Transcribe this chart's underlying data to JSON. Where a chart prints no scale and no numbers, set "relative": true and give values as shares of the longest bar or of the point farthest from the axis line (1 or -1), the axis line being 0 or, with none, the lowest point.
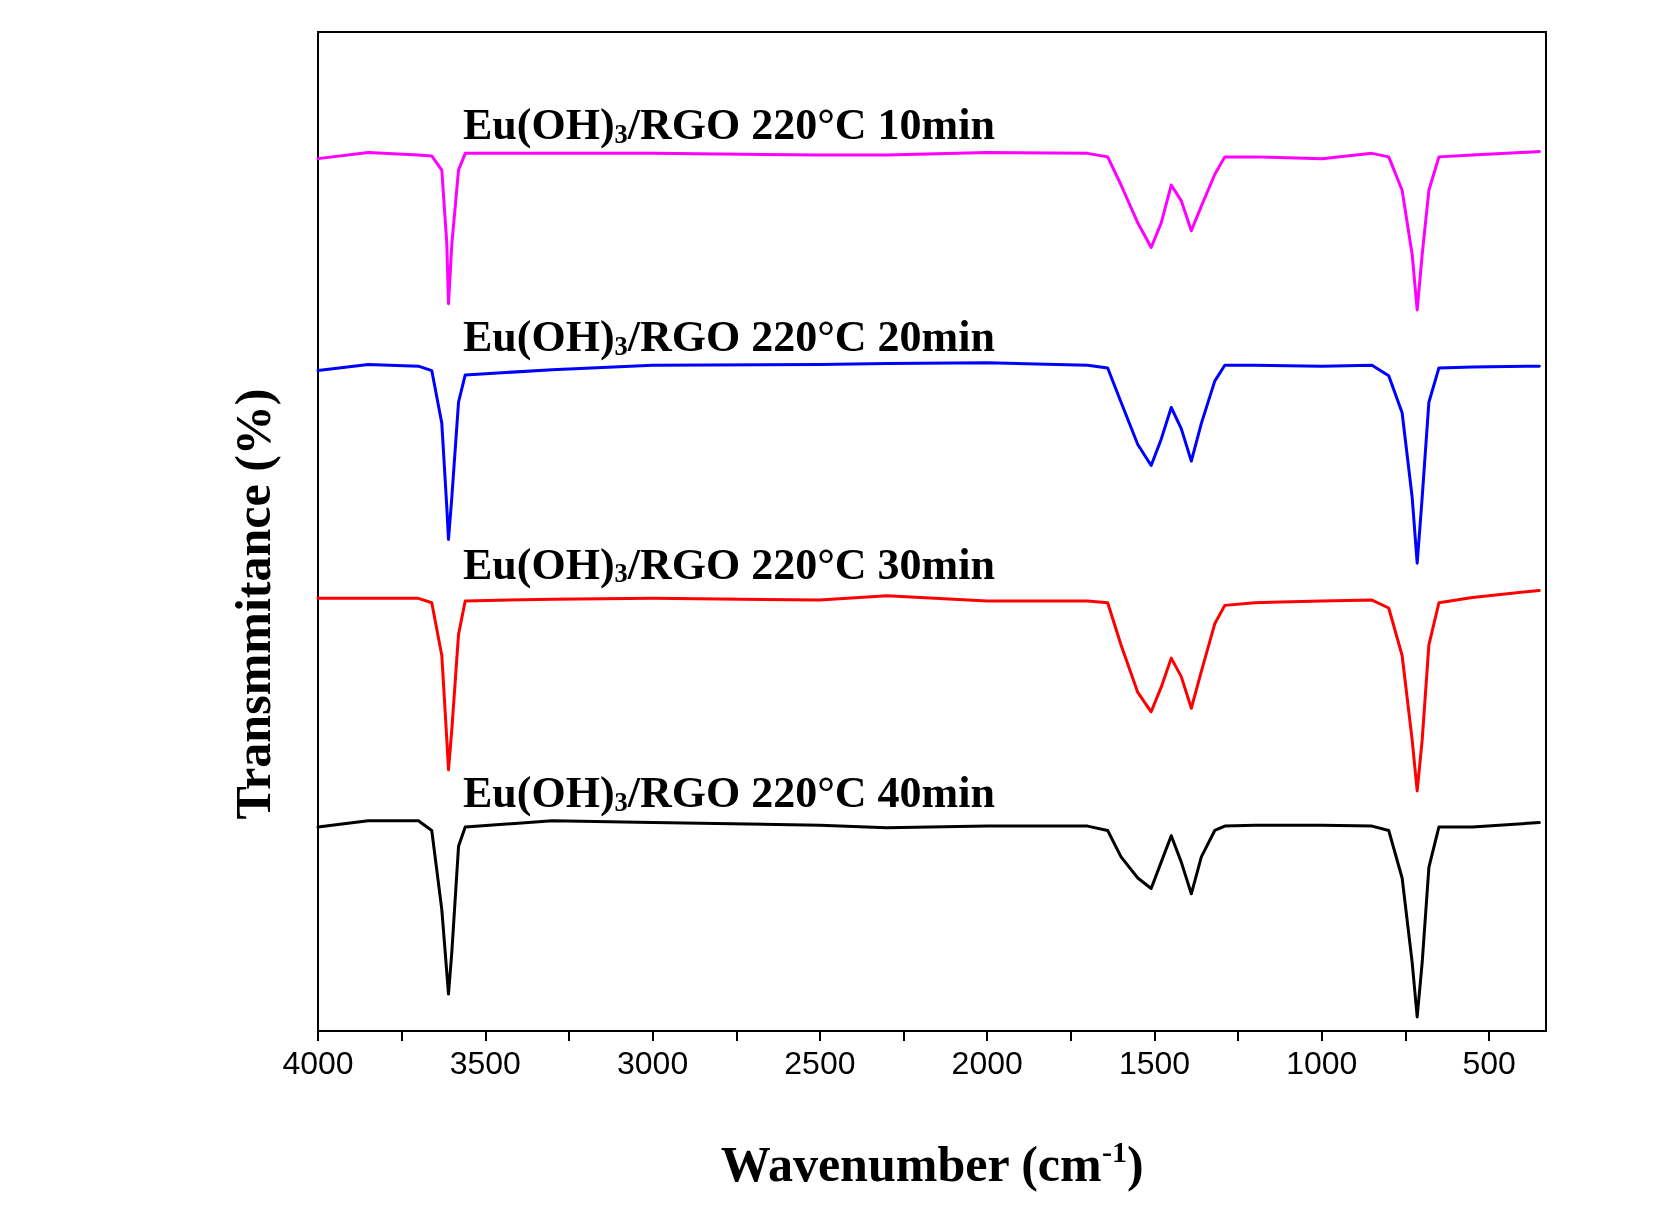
{
  "chart_data": {
    "type": "line",
    "relative": true,
    "xlabel": "Wavenumber (cm$^{-1}$)",
    "ylabel": "Transmmitance (%)",
    "xlim": [
      4000,
      330
    ],
    "xticks": [
      4000,
      {
        "value": 3750,
        "label": null
      },
      3500,
      {
        "value": 3250,
        "label": null
      },
      3000,
      {
        "value": 2750,
        "label": null
      },
      2500,
      {
        "value": 2250,
        "label": null
      },
      2000,
      {
        "value": 1750,
        "label": null
      },
      1500,
      {
        "value": 1250,
        "label": null
      },
      1000,
      {
        "value": 750,
        "label": null
      },
      500
    ],
    "grid": false,
    "legend": false,
    "marker": "none",
    "line_style": "solid",
    "x": [
      4000,
      3850,
      3700,
      3660,
      3630,
      3615,
      3610,
      3600,
      3580,
      3560,
      3300,
      3000,
      2500,
      2300,
      2000,
      1700,
      1640,
      1600,
      1550,
      1510,
      1480,
      1450,
      1420,
      1390,
      1360,
      1320,
      1290,
      1200,
      1000,
      850,
      800,
      760,
      730,
      715,
      700,
      680,
      650,
      550,
      350
    ],
    "series": [
      {
        "name": "Eu(OH)$_{3}$/RGO 220°C 10min",
        "color": "#ff00ff",
        "values": [
          0.992,
          0.999,
          0.996,
          0.995,
          0.979,
          0.895,
          0.827,
          0.895,
          0.979,
          0.998,
          0.998,
          0.998,
          0.996,
          0.996,
          0.999,
          0.998,
          0.994,
          0.962,
          0.919,
          0.891,
          0.919,
          0.962,
          0.944,
          0.91,
          0.938,
          0.974,
          0.994,
          0.994,
          0.992,
          0.998,
          0.994,
          0.956,
          0.883,
          0.82,
          0.883,
          0.956,
          0.994,
          0.996,
          1.0
        ]
      },
      {
        "name": "Eu(OH)$_{3}$/RGO 220°C 20min",
        "color": "#0000ff",
        "values": [
          0.751,
          0.758,
          0.756,
          0.751,
          0.691,
          0.595,
          0.559,
          0.607,
          0.715,
          0.746,
          0.752,
          0.757,
          0.758,
          0.759,
          0.76,
          0.757,
          0.754,
          0.715,
          0.667,
          0.643,
          0.673,
          0.709,
          0.685,
          0.648,
          0.691,
          0.739,
          0.757,
          0.757,
          0.756,
          0.757,
          0.745,
          0.703,
          0.607,
          0.532,
          0.607,
          0.715,
          0.754,
          0.755,
          0.756
        ]
      },
      {
        "name": "Eu(OH)$_{3}$/RGO 220°C 30min",
        "color": "#ff0000",
        "values": [
          0.492,
          0.492,
          0.492,
          0.487,
          0.427,
          0.331,
          0.297,
          0.343,
          0.451,
          0.489,
          0.491,
          0.492,
          0.49,
          0.495,
          0.489,
          0.489,
          0.487,
          0.439,
          0.385,
          0.363,
          0.391,
          0.424,
          0.403,
          0.367,
          0.409,
          0.463,
          0.484,
          0.487,
          0.489,
          0.49,
          0.481,
          0.427,
          0.331,
          0.273,
          0.331,
          0.439,
          0.487,
          0.493,
          0.501
        ]
      },
      {
        "name": "Eu(OH)$_{3}$/RGO 220°C 40min",
        "color": "#000000",
        "values": [
          0.232,
          0.239,
          0.239,
          0.228,
          0.138,
          0.066,
          0.042,
          0.09,
          0.21,
          0.232,
          0.239,
          0.237,
          0.234,
          0.231,
          0.233,
          0.233,
          0.228,
          0.198,
          0.174,
          0.162,
          0.192,
          0.222,
          0.192,
          0.156,
          0.198,
          0.228,
          0.233,
          0.234,
          0.234,
          0.233,
          0.228,
          0.174,
          0.078,
          0.016,
          0.078,
          0.186,
          0.232,
          0.232,
          0.237
        ]
      }
    ]
  }
}
